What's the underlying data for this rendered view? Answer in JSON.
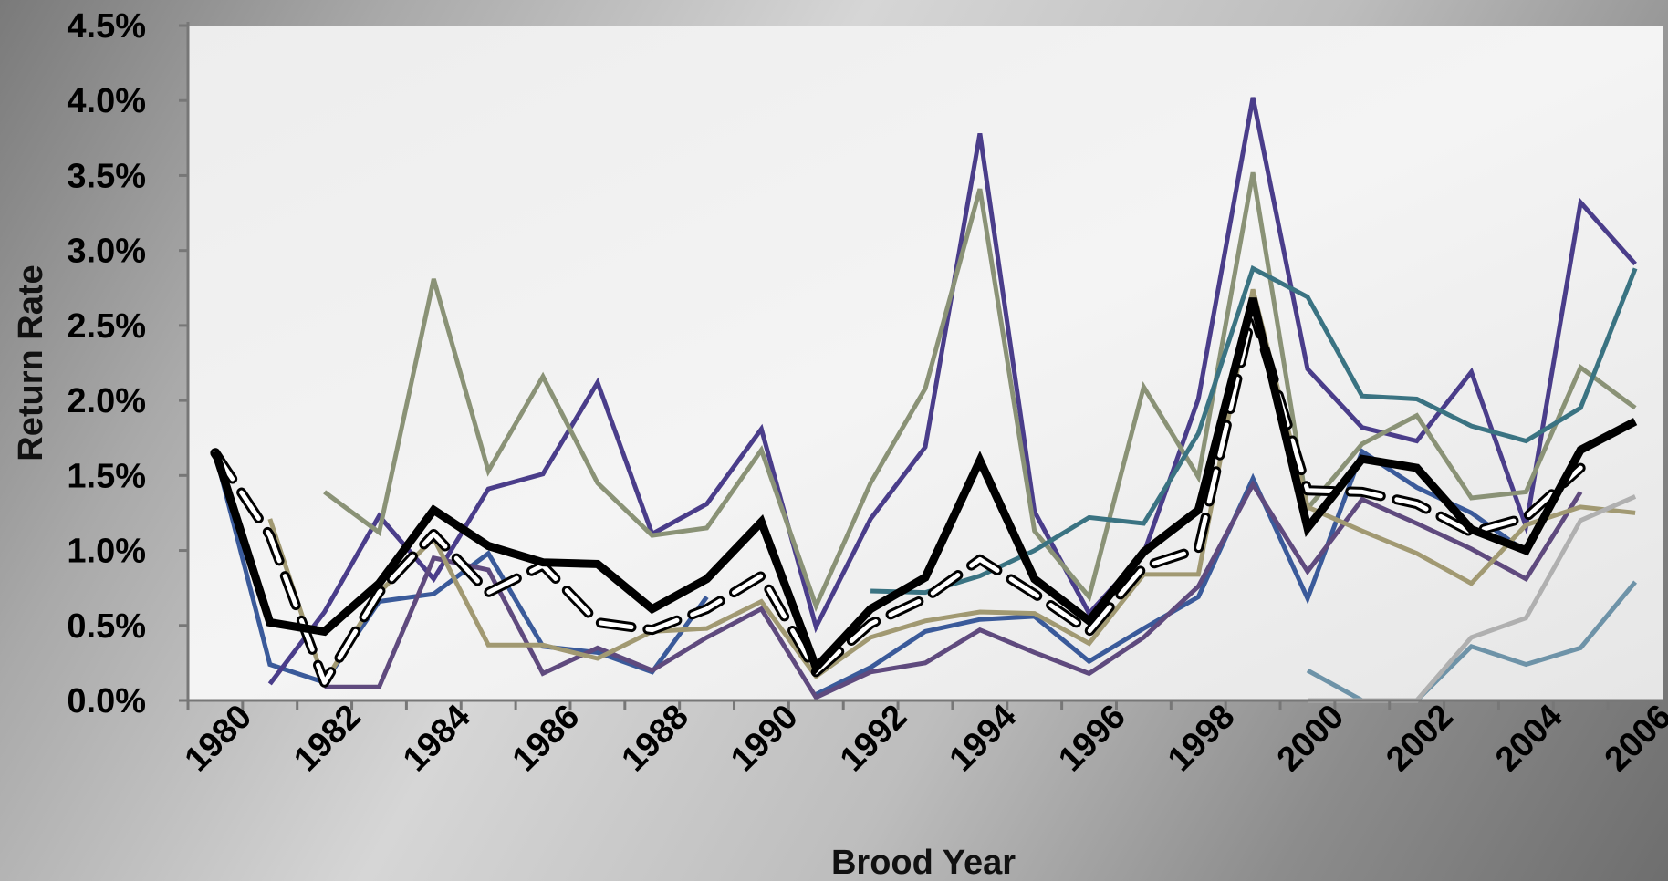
{
  "chart_data": {
    "type": "line",
    "xlabel": "Brood Year",
    "ylabel": "Return Rate",
    "xlim": [
      1980,
      2006
    ],
    "ylim": [
      0,
      4.5
    ],
    "x_ticks": [
      1980,
      1982,
      1984,
      1986,
      1988,
      1990,
      1992,
      1994,
      1996,
      1998,
      2000,
      2002,
      2004,
      2006
    ],
    "y_ticks": [
      "0.0%",
      "0.5%",
      "1.0%",
      "1.5%",
      "2.0%",
      "2.5%",
      "3.0%",
      "3.5%",
      "4.0%",
      "4.5%"
    ],
    "y_tick_values": [
      0,
      0.5,
      1.0,
      1.5,
      2.0,
      2.5,
      3.0,
      3.5,
      4.0,
      4.5
    ],
    "legend": "none",
    "grid": false,
    "x": [
      1980,
      1981,
      1982,
      1983,
      1984,
      1985,
      1986,
      1987,
      1988,
      1989,
      1990,
      1991,
      1992,
      1993,
      1994,
      1995,
      1996,
      1997,
      1998,
      1999,
      2000,
      2001,
      2002,
      2003,
      2004,
      2005,
      2006
    ],
    "series": [
      {
        "color": "#3a5a9a",
        "width": 5,
        "dash": false,
        "values": [
          1.65,
          0.24,
          0.12,
          0.66,
          0.71,
          0.98,
          0.36,
          0.32,
          0.19,
          0.69,
          null,
          0.04,
          0.22,
          0.46,
          0.54,
          0.56,
          0.26,
          0.48,
          0.69,
          1.48,
          0.68,
          1.66,
          1.42,
          1.25,
          0.99,
          null,
          null
        ]
      },
      {
        "color": "#4a3d8a",
        "width": 5,
        "dash": false,
        "values": [
          null,
          0.11,
          0.59,
          1.23,
          0.81,
          1.41,
          1.51,
          2.12,
          1.11,
          1.31,
          1.81,
          0.49,
          1.21,
          1.69,
          3.78,
          1.26,
          0.58,
          0.98,
          2.01,
          4.02,
          2.21,
          1.82,
          1.73,
          2.19,
          1.16,
          3.32,
          2.91
        ]
      },
      {
        "color": "#5f4a7e",
        "width": 5,
        "dash": false,
        "values": [
          null,
          null,
          0.09,
          0.09,
          0.95,
          0.87,
          0.18,
          0.35,
          0.2,
          0.42,
          0.61,
          0.02,
          0.19,
          0.25,
          0.47,
          0.32,
          0.18,
          0.42,
          0.76,
          1.44,
          0.86,
          1.34,
          1.18,
          1.01,
          0.81,
          1.39,
          null
        ]
      },
      {
        "color": "#8a9276",
        "width": 5,
        "dash": false,
        "values": [
          null,
          null,
          1.39,
          1.12,
          2.81,
          1.53,
          2.16,
          1.45,
          1.1,
          1.15,
          1.67,
          0.63,
          1.45,
          2.08,
          3.41,
          1.13,
          0.69,
          2.09,
          1.49,
          3.52,
          1.28,
          1.71,
          1.9,
          1.35,
          1.39,
          2.22,
          1.95
        ]
      },
      {
        "color": "#a19972",
        "width": 5,
        "dash": false,
        "values": [
          null,
          1.21,
          0.12,
          0.72,
          1.08,
          0.37,
          0.37,
          0.28,
          0.46,
          0.48,
          0.66,
          0.16,
          0.42,
          0.53,
          0.59,
          0.58,
          0.38,
          0.84,
          0.84,
          2.74,
          1.29,
          1.13,
          0.98,
          0.78,
          1.17,
          1.29,
          1.25
        ]
      },
      {
        "color": "#3a7382",
        "width": 5,
        "dash": false,
        "values": [
          null,
          null,
          null,
          null,
          null,
          null,
          null,
          null,
          null,
          null,
          null,
          null,
          0.73,
          0.72,
          0.83,
          1.0,
          1.22,
          1.18,
          1.78,
          2.88,
          2.69,
          2.03,
          2.01,
          1.83,
          1.73,
          1.95,
          2.88
        ]
      },
      {
        "color": "#6e93a8",
        "width": 5,
        "dash": false,
        "values": [
          null,
          null,
          null,
          null,
          null,
          null,
          null,
          null,
          null,
          null,
          null,
          null,
          null,
          null,
          null,
          null,
          null,
          null,
          null,
          null,
          0.2,
          0.0,
          0.0,
          0.36,
          0.24,
          0.35,
          0.79
        ]
      },
      {
        "color": "#b0b0b0",
        "width": 5,
        "dash": false,
        "values": [
          null,
          null,
          null,
          null,
          null,
          null,
          null,
          null,
          null,
          null,
          null,
          null,
          null,
          null,
          null,
          null,
          null,
          null,
          null,
          null,
          0.0,
          0.0,
          0.0,
          0.42,
          0.55,
          1.2,
          1.36
        ]
      },
      {
        "color": "#ffffff",
        "width": 7,
        "dash": true,
        "values": [
          1.65,
          1.1,
          0.12,
          0.72,
          1.11,
          0.72,
          0.9,
          0.52,
          0.47,
          0.61,
          0.83,
          0.19,
          0.51,
          0.68,
          0.94,
          0.71,
          0.46,
          0.89,
          1.01,
          2.6,
          1.4,
          1.39,
          1.31,
          1.12,
          1.22,
          1.55,
          null
        ]
      },
      {
        "color": "#000000",
        "width": 9,
        "dash": false,
        "values": [
          1.66,
          0.52,
          0.46,
          0.78,
          1.27,
          1.03,
          0.92,
          0.91,
          0.61,
          0.81,
          1.19,
          0.22,
          0.61,
          0.82,
          1.6,
          0.81,
          0.53,
          0.99,
          1.27,
          2.68,
          1.15,
          1.61,
          1.55,
          1.14,
          1.0,
          1.67,
          1.86
        ]
      }
    ]
  }
}
